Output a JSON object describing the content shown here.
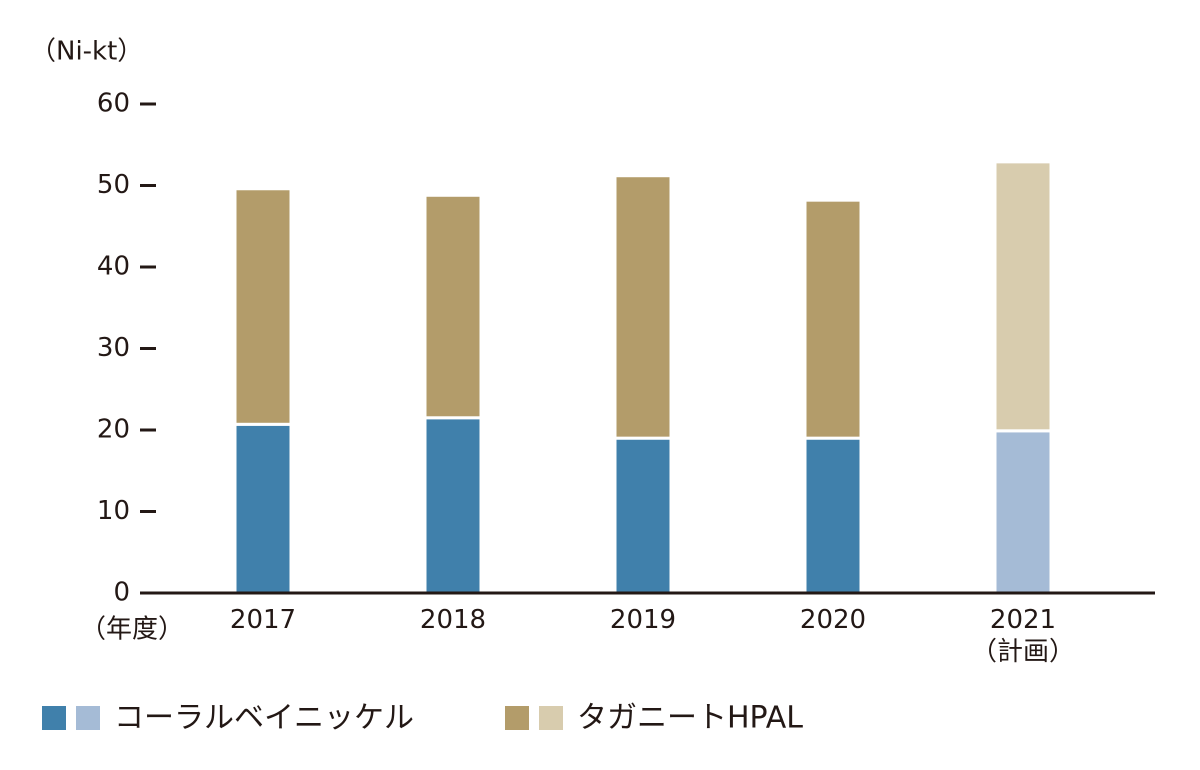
{
  "chart_data": {
    "type": "stacked-bar",
    "y_label": "（Ni-kt）",
    "x_label": "（年度）",
    "categories": [
      "2017",
      "2018",
      "2019",
      "2020",
      "2021\n（計画）"
    ],
    "series": [
      {
        "name": "コーラルベイニッケル",
        "colors": [
          "#4080ab",
          "#4080ab",
          "#4080ab",
          "#4080ab",
          "#a5bbd6"
        ],
        "values": [
          20.7,
          21.5,
          19.0,
          19.0,
          19.9
        ]
      },
      {
        "name": "タガニートHPAL",
        "colors": [
          "#b39c6a",
          "#b39c6a",
          "#b39c6a",
          "#b39c6a",
          "#d8ccae"
        ],
        "values": [
          28.9,
          27.3,
          32.2,
          29.2,
          33.0
        ]
      }
    ],
    "ylim": [
      0,
      60
    ],
    "yticks": [
      0,
      10,
      20,
      30,
      40,
      50,
      60
    ],
    "legend": "bottom"
  }
}
